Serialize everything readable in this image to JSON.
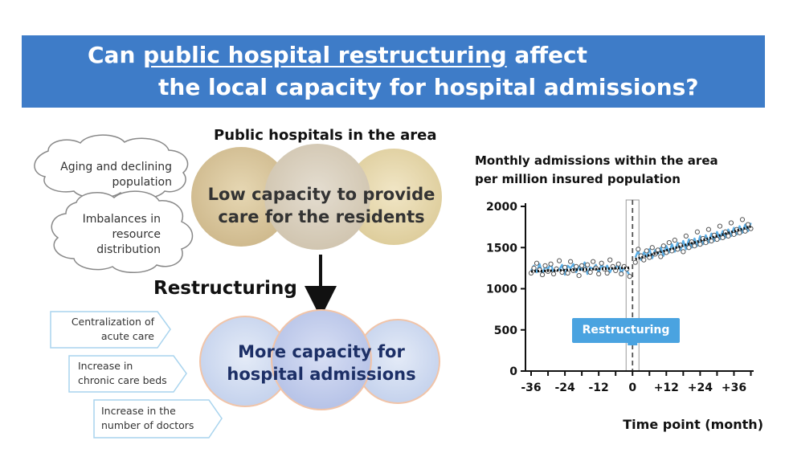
{
  "banner": {
    "line1_prefix": "Can ",
    "line1_underlined": "public hospital restructuring",
    "line1_suffix": " affect",
    "line2": "the local capacity for hospital admissions?"
  },
  "diagram": {
    "header": "Public hospitals in the area",
    "clouds": [
      {
        "line1": "Aging and declining",
        "line2": "population"
      },
      {
        "line1": "Imbalances in",
        "line2": "resource",
        "line3": "distribution"
      }
    ],
    "before_circle": {
      "line1": "Low capacity to provide",
      "line2": "care for the residents"
    },
    "arrow_label": "Restructuring",
    "after_circle": {
      "line1": "More capacity for",
      "line2": "hospital admissions"
    },
    "flags": [
      {
        "line1": "Centralization of",
        "line2": "acute care"
      },
      {
        "line1": "Increase in",
        "line2": "chronic care beds"
      },
      {
        "line1": "Increase in the",
        "line2": "number of doctors"
      }
    ],
    "colors": {
      "banner": "#3e7cc8",
      "callout": "#4aa3e0",
      "before_circle": "#d9c9a0",
      "after_circle": "#c9d7ee"
    }
  },
  "chart_data": {
    "type": "scatter",
    "title_line1": "Monthly admissions within the area",
    "title_line2": "per million insured population",
    "xlabel": "Time point (month)",
    "ylabel": "",
    "xlim": [
      -38,
      43
    ],
    "ylim": [
      0,
      2000
    ],
    "x_ticks": [
      -36,
      -24,
      -12,
      0,
      12,
      24,
      36
    ],
    "x_tick_labels": [
      "-36",
      "-24",
      "-12",
      "0",
      "+12",
      "+24",
      "+36"
    ],
    "y_ticks": [
      0,
      500,
      1000,
      1500,
      2000
    ],
    "y_tick_labels": [
      "0",
      "500",
      "1000",
      "1500",
      "2000"
    ],
    "callout": "Restructuring",
    "intervention_x": 0,
    "pre_trend": {
      "x": [
        -36,
        -1
      ],
      "y": [
        1210,
        1255
      ]
    },
    "post_trend": {
      "x": [
        1,
        42
      ],
      "y": [
        1360,
        1755
      ]
    },
    "observed": [
      {
        "x": -36,
        "y": 1190
      },
      {
        "x": -35,
        "y": 1250
      },
      {
        "x": -34,
        "y": 1310
      },
      {
        "x": -33,
        "y": 1230
      },
      {
        "x": -32,
        "y": 1170
      },
      {
        "x": -31,
        "y": 1280
      },
      {
        "x": -30,
        "y": 1210
      },
      {
        "x": -29,
        "y": 1300
      },
      {
        "x": -28,
        "y": 1180
      },
      {
        "x": -27,
        "y": 1240
      },
      {
        "x": -26,
        "y": 1340
      },
      {
        "x": -25,
        "y": 1200
      },
      {
        "x": -24,
        "y": 1260
      },
      {
        "x": -23,
        "y": 1190
      },
      {
        "x": -22,
        "y": 1330
      },
      {
        "x": -21,
        "y": 1220
      },
      {
        "x": -20,
        "y": 1270
      },
      {
        "x": -19,
        "y": 1160
      },
      {
        "x": -18,
        "y": 1280
      },
      {
        "x": -17,
        "y": 1230
      },
      {
        "x": -16,
        "y": 1290
      },
      {
        "x": -15,
        "y": 1200
      },
      {
        "x": -14,
        "y": 1330
      },
      {
        "x": -13,
        "y": 1250
      },
      {
        "x": -12,
        "y": 1180
      },
      {
        "x": -11,
        "y": 1310
      },
      {
        "x": -10,
        "y": 1240
      },
      {
        "x": -9,
        "y": 1190
      },
      {
        "x": -8,
        "y": 1350
      },
      {
        "x": -7,
        "y": 1270
      },
      {
        "x": -6,
        "y": 1220
      },
      {
        "x": -5,
        "y": 1300
      },
      {
        "x": -4,
        "y": 1180
      },
      {
        "x": -3,
        "y": 1270
      },
      {
        "x": -2,
        "y": 1240
      },
      {
        "x": -1,
        "y": 1150
      },
      {
        "x": 1,
        "y": 1320
      },
      {
        "x": 2,
        "y": 1480
      },
      {
        "x": 3,
        "y": 1400
      },
      {
        "x": 4,
        "y": 1350
      },
      {
        "x": 5,
        "y": 1460
      },
      {
        "x": 6,
        "y": 1380
      },
      {
        "x": 7,
        "y": 1500
      },
      {
        "x": 8,
        "y": 1420
      },
      {
        "x": 9,
        "y": 1470
      },
      {
        "x": 10,
        "y": 1390
      },
      {
        "x": 11,
        "y": 1520
      },
      {
        "x": 12,
        "y": 1440
      },
      {
        "x": 13,
        "y": 1560
      },
      {
        "x": 14,
        "y": 1460
      },
      {
        "x": 15,
        "y": 1590
      },
      {
        "x": 16,
        "y": 1480
      },
      {
        "x": 17,
        "y": 1530
      },
      {
        "x": 18,
        "y": 1450
      },
      {
        "x": 19,
        "y": 1640
      },
      {
        "x": 20,
        "y": 1500
      },
      {
        "x": 21,
        "y": 1570
      },
      {
        "x": 22,
        "y": 1520
      },
      {
        "x": 23,
        "y": 1690
      },
      {
        "x": 24,
        "y": 1540
      },
      {
        "x": 25,
        "y": 1610
      },
      {
        "x": 26,
        "y": 1560
      },
      {
        "x": 27,
        "y": 1720
      },
      {
        "x": 28,
        "y": 1580
      },
      {
        "x": 29,
        "y": 1650
      },
      {
        "x": 30,
        "y": 1600
      },
      {
        "x": 31,
        "y": 1760
      },
      {
        "x": 32,
        "y": 1620
      },
      {
        "x": 33,
        "y": 1690
      },
      {
        "x": 34,
        "y": 1640
      },
      {
        "x": 35,
        "y": 1800
      },
      {
        "x": 36,
        "y": 1660
      },
      {
        "x": 37,
        "y": 1720
      },
      {
        "x": 38,
        "y": 1680
      },
      {
        "x": 39,
        "y": 1840
      },
      {
        "x": 40,
        "y": 1700
      },
      {
        "x": 41,
        "y": 1780
      },
      {
        "x": 42,
        "y": 1730
      }
    ],
    "series": [
      {
        "values": [
          1220,
          1280,
          1200,
          1300,
          1180,
          1270,
          1240,
          1310,
          1190,
          1260,
          1230,
          1290,
          1170,
          1280,
          1250,
          1300,
          1200,
          1270,
          1230,
          1320,
          1180,
          1260,
          1240,
          1290,
          1190,
          1300,
          1230,
          1280,
          1200,
          1270,
          1250,
          1310,
          1180,
          1260,
          1220,
          1160,
          1380,
          1460,
          1350,
          1440,
          1390,
          1480,
          1370,
          1470,
          1420,
          1500,
          1400,
          1520,
          1440,
          1540,
          1450,
          1560,
          1470,
          1580,
          1480,
          1600,
          1500,
          1610,
          1520,
          1640,
          1540,
          1650,
          1560,
          1670,
          1580,
          1690,
          1600,
          1700,
          1620,
          1720,
          1640,
          1740,
          1660,
          1760,
          1680,
          1780,
          1700,
          1800
        ]
      }
    ]
  }
}
